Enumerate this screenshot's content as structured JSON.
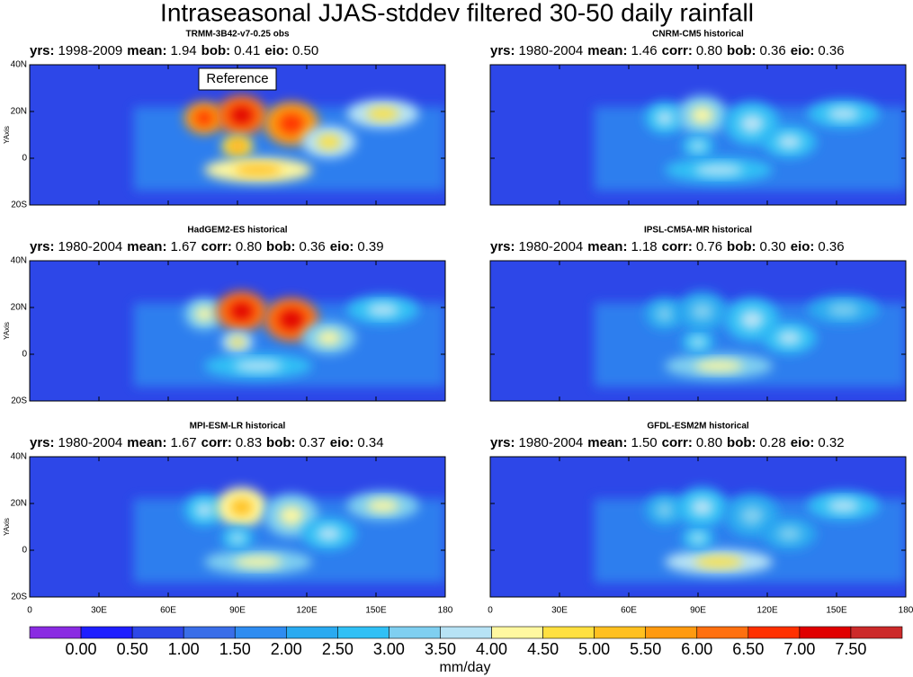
{
  "title": "Intraseasonal JJAS-stddev filtered 30-50 daily rainfall",
  "xlim": [
    0,
    180
  ],
  "ylim": [
    -20,
    40
  ],
  "xticks": [
    0,
    {
      "value": 30,
      "label": "30E"
    },
    {
      "value": 60,
      "label": "60E"
    },
    {
      "value": 90,
      "label": "90E"
    },
    {
      "value": 120,
      "label": "120E"
    },
    {
      "value": 150,
      "label": "150E"
    },
    180
  ],
  "yticks": [
    {
      "value": 40,
      "label": "40N"
    },
    {
      "value": 20,
      "label": "20N"
    },
    0,
    {
      "value": -20,
      "label": "20S"
    }
  ],
  "y_axis_label": "YAxis",
  "panels": [
    {
      "model": "TRMM-3B42-v7-0.25 obs",
      "annotation": "Reference",
      "stats": [
        {
          "key": "yrs:",
          "value": "1998-2009"
        },
        {
          "key": "mean:",
          "value": "1.94"
        },
        {
          "key": "bob:",
          "value": "0.41"
        },
        {
          "key": "eio:",
          "value": "0.50"
        }
      ]
    },
    {
      "model": "CNRM-CM5 historical",
      "stats": [
        {
          "key": "yrs:",
          "value": "1980-2004"
        },
        {
          "key": "mean:",
          "value": "1.46"
        },
        {
          "key": "corr:",
          "value": "0.80"
        },
        {
          "key": "bob:",
          "value": "0.36"
        },
        {
          "key": "eio:",
          "value": "0.36"
        }
      ]
    },
    {
      "model": "HadGEM2-ES historical",
      "stats": [
        {
          "key": "yrs:",
          "value": "1980-2004"
        },
        {
          "key": "mean:",
          "value": "1.67"
        },
        {
          "key": "corr:",
          "value": "0.80"
        },
        {
          "key": "bob:",
          "value": "0.36"
        },
        {
          "key": "eio:",
          "value": "0.39"
        }
      ]
    },
    {
      "model": "IPSL-CM5A-MR historical",
      "stats": [
        {
          "key": "yrs:",
          "value": "1980-2004"
        },
        {
          "key": "mean:",
          "value": "1.18"
        },
        {
          "key": "corr:",
          "value": "0.76"
        },
        {
          "key": "bob:",
          "value": "0.30"
        },
        {
          "key": "eio:",
          "value": "0.36"
        }
      ]
    },
    {
      "model": "MPI-ESM-LR historical",
      "stats": [
        {
          "key": "yrs:",
          "value": "1980-2004"
        },
        {
          "key": "mean:",
          "value": "1.67"
        },
        {
          "key": "corr:",
          "value": "0.83"
        },
        {
          "key": "bob:",
          "value": "0.37"
        },
        {
          "key": "eio:",
          "value": "0.34"
        }
      ]
    },
    {
      "model": "GFDL-ESM2M historical",
      "stats": [
        {
          "key": "yrs:",
          "value": "1980-2004"
        },
        {
          "key": "mean:",
          "value": "1.50"
        },
        {
          "key": "corr:",
          "value": "0.80"
        },
        {
          "key": "bob:",
          "value": "0.28"
        },
        {
          "key": "eio:",
          "value": "0.32"
        }
      ]
    }
  ],
  "colorbar": {
    "label": "mm/day",
    "levels": [
      {
        "value": 0,
        "label": "0.00"
      },
      {
        "value": 0.5,
        "label": "0.50"
      },
      {
        "value": 1,
        "label": "1.00"
      },
      {
        "value": 1.5,
        "label": "1.50"
      },
      {
        "value": 2,
        "label": "2.00"
      },
      {
        "value": 2.5,
        "label": "2.50"
      },
      {
        "value": 3,
        "label": "3.00"
      },
      {
        "value": 3.5,
        "label": "3.50"
      },
      {
        "value": 4,
        "label": "4.00"
      },
      {
        "value": 4.5,
        "label": "4.50"
      },
      {
        "value": 5,
        "label": "5.00"
      },
      {
        "value": 5.5,
        "label": "5.50"
      },
      {
        "value": 6,
        "label": "6.00"
      },
      {
        "value": 6.5,
        "label": "6.50"
      },
      {
        "value": 7,
        "label": "7.00"
      },
      {
        "value": 7.5,
        "label": "7.50"
      }
    ],
    "colors": [
      "#8a2be2",
      "#1e1eff",
      "#2d47e8",
      "#3a6ee8",
      "#2f8cf0",
      "#2aaaf0",
      "#30c0f5",
      "#7fcff0",
      "#b7e3f5",
      "#fff8a0",
      "#ffe040",
      "#ffc020",
      "#ff9a10",
      "#ff7010",
      "#ff3000",
      "#e00000",
      "#cc2a2a"
    ]
  }
}
